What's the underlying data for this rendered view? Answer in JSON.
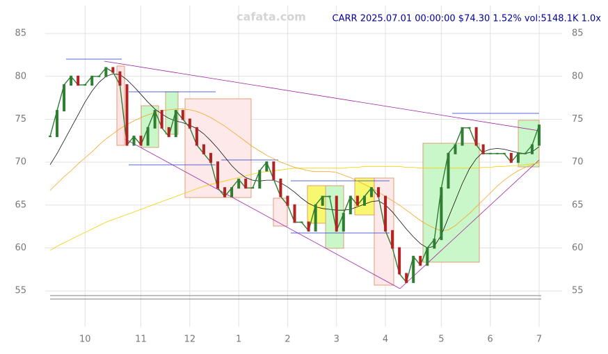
{
  "chart_data": {
    "type": "line",
    "watermark": "cafata.com",
    "title": "CARR 2025.07.01 00:00:00 $74.30 1.52% vol:5148.1K 1.0x",
    "categories": [
      null,
      null,
      null,
      null,
      null,
      "10",
      null,
      null,
      null,
      null,
      null,
      null,
      null,
      "11",
      null,
      null,
      null,
      null,
      null,
      null,
      "12",
      null,
      null,
      null,
      null,
      null,
      null,
      "1",
      null,
      null,
      null,
      null,
      null,
      null,
      "2",
      null,
      null,
      null,
      null,
      null,
      null,
      "3",
      null,
      null,
      null,
      null,
      null,
      null,
      "4",
      null,
      null,
      null,
      null,
      null,
      null,
      null,
      "5",
      null,
      null,
      null,
      null,
      null,
      null,
      "6",
      null,
      null,
      null,
      null,
      null,
      null,
      "7"
    ],
    "series": [
      {
        "name": "close",
        "color": "#2e7d32",
        "width": 1.4,
        "values": [
          73,
          76,
          79,
          80,
          79,
          79,
          80,
          80,
          81,
          80.5,
          79,
          72,
          73,
          72,
          74,
          76,
          74,
          73,
          76,
          75,
          74,
          72,
          71,
          70,
          67,
          66,
          67,
          68,
          67,
          67,
          69,
          70,
          68,
          66,
          65,
          63,
          63,
          62,
          65,
          66,
          66,
          62,
          64,
          66,
          65,
          66,
          67,
          66,
          62,
          60,
          57,
          56,
          59,
          58,
          60,
          61,
          67,
          71,
          72,
          74,
          74,
          72,
          71,
          71,
          71,
          71,
          70,
          71,
          71,
          72,
          74.3
        ]
      },
      {
        "name": "ma20",
        "color": "#111111",
        "width": 0.8,
        "values": [
          69.7,
          71,
          72.5,
          74,
          75.5,
          77,
          78.3,
          79.3,
          80,
          80.3,
          80.2,
          79.6,
          78.8,
          77.9,
          77,
          76.2,
          75.6,
          75.1,
          74.8,
          74.6,
          74.3,
          73.9,
          73.3,
          72.5,
          71.6,
          70.6,
          69.6,
          68.8,
          68.2,
          67.9,
          67.8,
          67.9,
          67.9,
          67.6,
          67.1,
          66.5,
          65.8,
          65.2,
          64.8,
          64.6,
          64.5,
          64.4,
          64.4,
          64.5,
          64.8,
          65.1,
          65.4,
          65.5,
          65,
          64.2,
          63.2,
          62.2,
          61.3,
          60.5,
          60,
          60.2,
          61.5,
          63.5,
          65.5,
          67.5,
          69.2,
          70.4,
          71.2,
          71.5,
          71.6,
          71.5,
          71.3,
          71.1,
          71,
          71.2,
          71.8
        ]
      },
      {
        "name": "ma50",
        "color": "#f5a623",
        "width": 0.8,
        "values": [
          66.7,
          67.5,
          68.3,
          69,
          69.8,
          70.5,
          71.2,
          72,
          72.7,
          73.3,
          73.9,
          74.4,
          74.8,
          75.2,
          75.5,
          75.8,
          76,
          76.1,
          76.2,
          76.2,
          76.1,
          75.9,
          75.6,
          75.2,
          74.7,
          74.2,
          73.6,
          73,
          72.4,
          71.8,
          71.3,
          70.8,
          70.4,
          70,
          69.7,
          69.4,
          69.2,
          69,
          68.9,
          68.9,
          68.9,
          68.8,
          68.5,
          68.2,
          67.8,
          67.4,
          67,
          66.5,
          66,
          65.5,
          65,
          64.4,
          63.8,
          63.2,
          62.7,
          62.3,
          62,
          62.1,
          62.6,
          63.3,
          64,
          64.8,
          65.6,
          66.4,
          67.2,
          67.9,
          68.5,
          69,
          69.4,
          69.7,
          70
        ]
      },
      {
        "name": "ma200",
        "color": "#f5d000",
        "width": 0.8,
        "values": [
          59.7,
          60.2,
          60.6,
          61,
          61.4,
          61.8,
          62.2,
          62.6,
          63,
          63.3,
          63.6,
          63.9,
          64.2,
          64.5,
          64.8,
          65.1,
          65.4,
          65.7,
          66,
          66.3,
          66.6,
          66.9,
          67.2,
          67.4,
          67.6,
          67.8,
          68,
          68.2,
          68.4,
          68.6,
          68.8,
          68.9,
          69,
          69.1,
          69.2,
          69.3,
          69.3,
          69.3,
          69.3,
          69.3,
          69.3,
          69.3,
          69.3,
          69.4,
          69.4,
          69.5,
          69.5,
          69.5,
          69.5,
          69.5,
          69.5,
          69.4,
          69.4,
          69.3,
          69.3,
          69.3,
          69.3,
          69.3,
          69.3,
          69.3,
          69.3,
          69.3,
          69.4,
          69.4,
          69.5,
          69.5,
          69.6,
          69.6,
          69.7,
          69.8,
          69.9
        ]
      }
    ],
    "ylim": [
      50.8,
      88.9
    ],
    "yticks": [
      55,
      60,
      65,
      70,
      75,
      80,
      85
    ],
    "grid": true
  }
}
